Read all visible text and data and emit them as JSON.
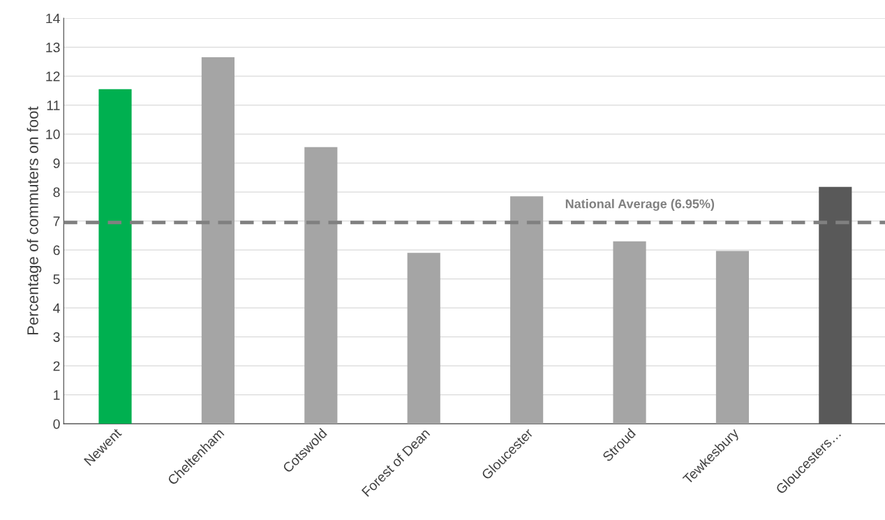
{
  "chart_data": {
    "type": "bar",
    "ylabel": "Percentage of commuters on foot",
    "categories": [
      "Newent",
      "Cheltenham",
      "Cotswold",
      "Forest of Dean",
      "Gloucester",
      "Stroud",
      "Tewkesbury",
      "Gloucesters…"
    ],
    "values": [
      11.55,
      12.65,
      9.55,
      5.9,
      7.85,
      6.3,
      5.97,
      8.18
    ],
    "colors": [
      "#00b050",
      "#a5a5a5",
      "#a5a5a5",
      "#a5a5a5",
      "#a5a5a5",
      "#a5a5a5",
      "#a5a5a5",
      "#595959"
    ],
    "ylim": [
      0,
      14
    ],
    "yticks": [
      0,
      1,
      2,
      3,
      4,
      5,
      6,
      7,
      8,
      9,
      10,
      11,
      12,
      13,
      14
    ],
    "grid": "y",
    "ref_lines": [
      {
        "axis": "y",
        "value": 6.95,
        "label": "National Average (6.95%)",
        "color": "#808080",
        "line_style": "dashed"
      }
    ]
  }
}
